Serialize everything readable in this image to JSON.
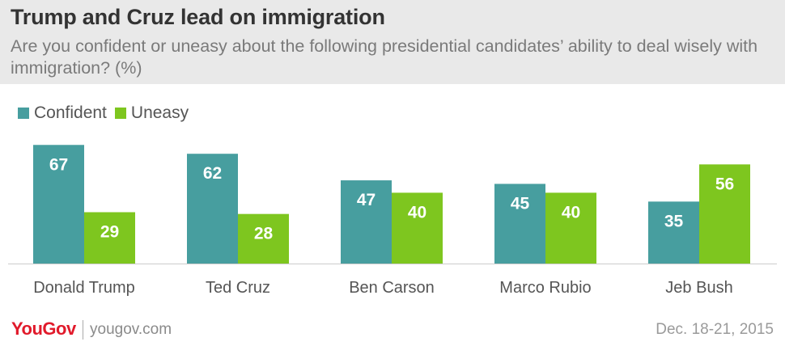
{
  "header": {
    "title": "Trump and Cruz lead on immigration",
    "subtitle": "Are you confident or uneasy about the following presidential candidates’ ability to deal wisely with immigration? (%)"
  },
  "footer": {
    "brand": "YouGov",
    "url": "yougov.com",
    "date": "Dec. 18-21, 2015"
  },
  "colors": {
    "confident": "#479e9f",
    "uneasy": "#7ec61f"
  },
  "chart_data": {
    "type": "bar",
    "categories": [
      "Donald Trump",
      "Ted Cruz",
      "Ben Carson",
      "Marco Rubio",
      "Jeb Bush"
    ],
    "series": [
      {
        "name": "Confident",
        "values": [
          67,
          62,
          47,
          45,
          35
        ]
      },
      {
        "name": "Uneasy",
        "values": [
          29,
          28,
          40,
          40,
          56
        ]
      }
    ],
    "legend_position": "top-left",
    "grid": false
  }
}
